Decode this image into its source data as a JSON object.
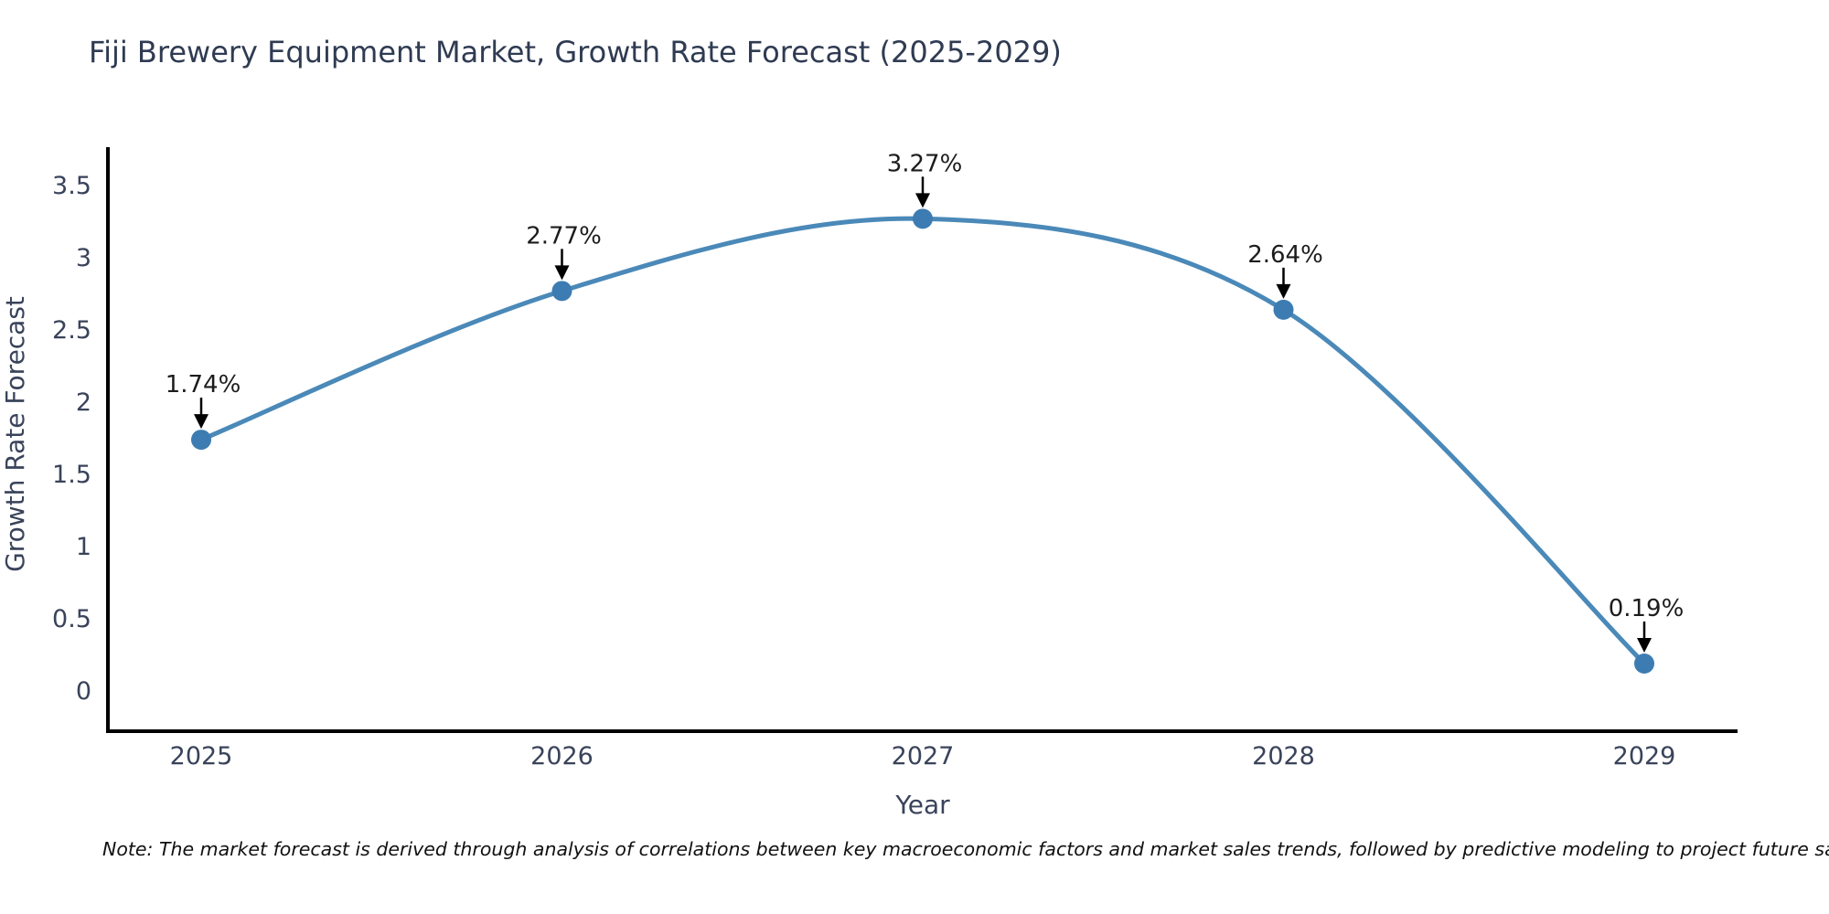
{
  "title": "Fiji Brewery Equipment Market, Growth Rate Forecast (2025-2029)",
  "note": "Note: The market forecast is derived through analysis of correlations between key macroeconomic factors and market sales trends, followed by predictive modeling to project future sales",
  "chart_data": {
    "type": "line",
    "title": "Fiji Brewery Equipment Market, Growth Rate Forecast (2025-2029)",
    "xlabel": "Year",
    "ylabel": "Growth Rate Forecast",
    "categories": [
      2025,
      2026,
      2027,
      2028,
      2029
    ],
    "values": [
      1.74,
      2.77,
      3.27,
      2.64,
      0.19
    ],
    "point_labels": [
      "1.74%",
      "2.77%",
      "3.27%",
      "2.64%",
      "0.19%"
    ],
    "yticks": [
      0,
      0.5,
      1,
      1.5,
      2,
      2.5,
      3,
      3.5
    ],
    "ylim": [
      -0.28,
      3.78
    ],
    "grid": false,
    "legend": "none",
    "curve": "smooth-spline",
    "marker": "circle",
    "annotation_arrows": "black-down-arrows",
    "colors": {
      "line": "#4a89b8",
      "marker": "#3d7cb2",
      "axis": "#000000",
      "title_text": "#2f3b52",
      "tick_text": "#39435a",
      "annotation_text": "#1c1c1c",
      "note_text": "#111111",
      "background": "#ffffff"
    }
  }
}
